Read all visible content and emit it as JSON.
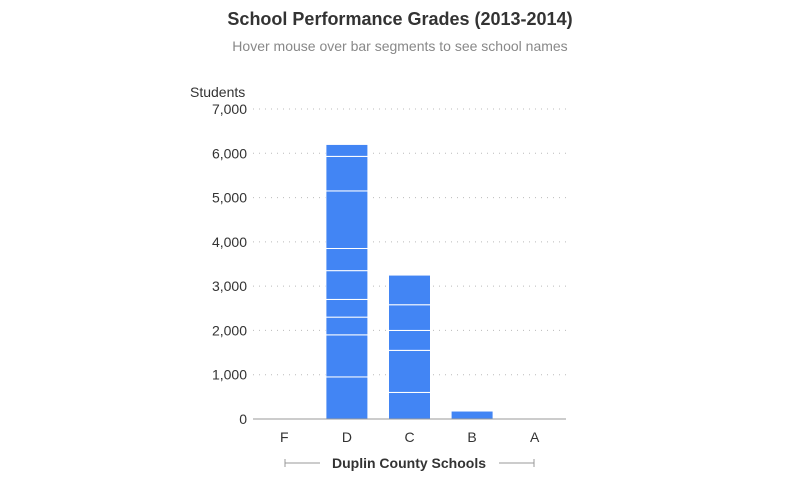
{
  "title": "School Performance Grades (2013-2014)",
  "subtitle": "Hover mouse over bar segments to see school names",
  "chart_data": {
    "type": "bar",
    "stacked": true,
    "title": "School Performance Grades (2013-2014)",
    "subtitle": "Hover mouse over bar segments to see school names",
    "ylabel": "Students",
    "xlabel": "Duplin County Schools",
    "ylim": [
      0,
      7000
    ],
    "yticks": [
      0,
      1000,
      2000,
      3000,
      4000,
      5000,
      6000,
      7000
    ],
    "ytick_labels": [
      "0",
      "1,000",
      "2,000",
      "3,000",
      "4,000",
      "5,000",
      "6,000",
      "7,000"
    ],
    "grid": true,
    "bar_color": "#4285f4",
    "categories": [
      "F",
      "D",
      "C",
      "B",
      "A"
    ],
    "segments": [
      [],
      [
        950,
        950,
        400,
        400,
        650,
        500,
        1300,
        780,
        270
      ],
      [
        600,
        950,
        450,
        580,
        670
      ],
      [
        180
      ],
      []
    ],
    "totals": [
      0,
      6200,
      3250,
      180,
      0
    ]
  }
}
